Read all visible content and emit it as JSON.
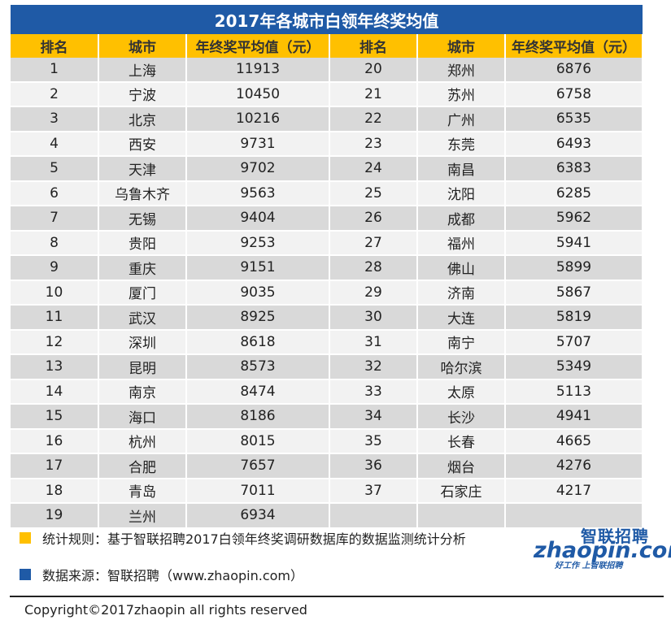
{
  "title": "2017年各城市白领年终奖均值",
  "headers": [
    "排名",
    "城市",
    "年终奖平均值（元）",
    "排名",
    "城市",
    "年终奖平均值（元）"
  ],
  "rows": [
    [
      "1",
      "上海",
      "11913",
      "20",
      "郑州",
      "6876"
    ],
    [
      "2",
      "宁波",
      "10450",
      "21",
      "苏州",
      "6758"
    ],
    [
      "3",
      "北京",
      "10216",
      "22",
      "广州",
      "6535"
    ],
    [
      "4",
      "西安",
      "9731",
      "23",
      "东莞",
      "6493"
    ],
    [
      "5",
      "天津",
      "9702",
      "24",
      "南昌",
      "6383"
    ],
    [
      "6",
      "乌鲁木齐",
      "9563",
      "25",
      "沈阳",
      "6285"
    ],
    [
      "7",
      "无锡",
      "9404",
      "26",
      "成都",
      "5962"
    ],
    [
      "8",
      "贵阳",
      "9253",
      "27",
      "福州",
      "5941"
    ],
    [
      "9",
      "重庆",
      "9151",
      "28",
      "佛山",
      "5899"
    ],
    [
      "10",
      "厦门",
      "9035",
      "29",
      "济南",
      "5867"
    ],
    [
      "11",
      "武汉",
      "8925",
      "30",
      "大连",
      "5819"
    ],
    [
      "12",
      "深圳",
      "8618",
      "31",
      "南宁",
      "5707"
    ],
    [
      "13",
      "昆明",
      "8573",
      "32",
      "哈尔滨",
      "5349"
    ],
    [
      "14",
      "南京",
      "8474",
      "33",
      "太原",
      "5113"
    ],
    [
      "15",
      "海口",
      "8186",
      "34",
      "长沙",
      "4941"
    ],
    [
      "16",
      "杭州",
      "8015",
      "35",
      "长春",
      "4665"
    ],
    [
      "17",
      "合肥",
      "7657",
      "36",
      "烟台",
      "4276"
    ],
    [
      "18",
      "青岛",
      "7011",
      "37",
      "石家庄",
      "4217"
    ],
    [
      "19",
      "兰州",
      "6934",
      "",
      "",
      ""
    ]
  ],
  "footer": {
    "rule_text": "统计规则：基于智联招聘2017白领年终奖调研数据库的数据监测统计分析",
    "source_text": "数据来源：智联招聘（www.zhaopin.com）",
    "rule_color": "#ffc000",
    "source_color": "#1f5aa6"
  },
  "logo": {
    "cn": "智联招聘",
    "en": "zhaopin.com",
    "tagline": "好工作 上智联招聘"
  },
  "copyright": "Copyright©2017zhaopin all rights reserved",
  "colors": {
    "title_bg": "#1f5aa6",
    "header_bg": "#ffc000",
    "row_dark": "#d9d9d9",
    "row_light": "#f2f2f2"
  }
}
